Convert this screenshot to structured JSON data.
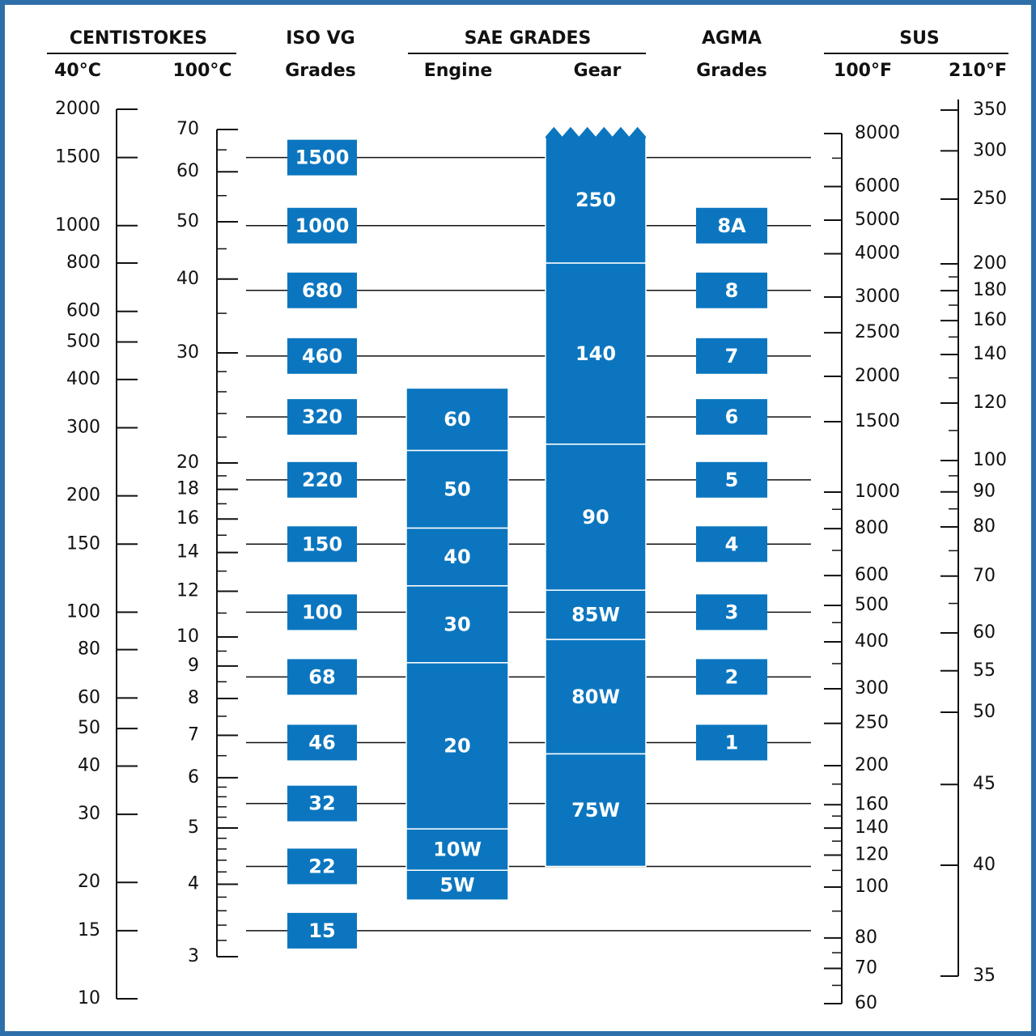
{
  "chart_data": {
    "type": "table",
    "headers": {
      "centistokes": "CENTISTOKES",
      "c40": "40°C",
      "c100": "100°C",
      "iso_line1": "ISO VG",
      "iso_line2": "Grades",
      "sae": "SAE GRADES",
      "engine": "Engine",
      "gear": "Gear",
      "agma_line1": "AGMA",
      "agma_line2": "Grades",
      "sus": "SUS",
      "f100": "100°F",
      "f210": "210°F"
    },
    "scales": {
      "cst40": {
        "labels": [
          "2000",
          "1500",
          "1000",
          "800",
          "600",
          "500",
          "400",
          "300",
          "200",
          "150",
          "100",
          "80",
          "60",
          "50",
          "40",
          "30",
          "20",
          "15",
          "10"
        ],
        "values": [
          2000,
          1500,
          1000,
          800,
          600,
          500,
          400,
          300,
          200,
          150,
          100,
          80,
          60,
          50,
          40,
          30,
          20,
          15,
          10
        ]
      },
      "cst100": {
        "labels": [
          "70",
          "60",
          "50",
          "40",
          "30",
          "20",
          "18",
          "16",
          "14",
          "12",
          "10",
          "9",
          "8",
          "7",
          "6",
          "5",
          "4",
          "3"
        ],
        "values": [
          70,
          60,
          50,
          40,
          30,
          20,
          18,
          16,
          14,
          12,
          10,
          9,
          8,
          7,
          6,
          5,
          4,
          3
        ]
      },
      "sus100": {
        "labels": [
          "8000",
          "6000",
          "5000",
          "4000",
          "3000",
          "2500",
          "2000",
          "1500",
          "1000",
          "800",
          "600",
          "500",
          "400",
          "300",
          "250",
          "200",
          "160",
          "140",
          "120",
          "100",
          "80",
          "70",
          "60"
        ],
        "values": [
          8000,
          6000,
          5000,
          4000,
          3000,
          2500,
          2000,
          1500,
          1000,
          800,
          600,
          500,
          400,
          300,
          250,
          200,
          160,
          140,
          120,
          100,
          80,
          70,
          60
        ]
      },
      "sus210": {
        "labels": [
          "350",
          "300",
          "250",
          "200",
          "180",
          "160",
          "140",
          "120",
          "100",
          "90",
          "80",
          "70",
          "60",
          "55",
          "50",
          "45",
          "40",
          "35"
        ],
        "values": [
          350,
          300,
          250,
          200,
          180,
          160,
          140,
          120,
          100,
          90,
          80,
          70,
          60,
          55,
          50,
          45,
          40,
          35
        ]
      }
    },
    "iso_grades": [
      {
        "label": "1500",
        "value": 1500
      },
      {
        "label": "1000",
        "value": 1000
      },
      {
        "label": "680",
        "value": 680
      },
      {
        "label": "460",
        "value": 460
      },
      {
        "label": "320",
        "value": 320
      },
      {
        "label": "220",
        "value": 220
      },
      {
        "label": "150",
        "value": 150
      },
      {
        "label": "100",
        "value": 100
      },
      {
        "label": "68",
        "value": 68
      },
      {
        "label": "46",
        "value": 46
      },
      {
        "label": "32",
        "value": 32
      },
      {
        "label": "22",
        "value": 22
      },
      {
        "label": "15",
        "value": 15
      }
    ],
    "agma_grades": [
      {
        "label": "8A",
        "value": 1000
      },
      {
        "label": "8",
        "value": 680
      },
      {
        "label": "7",
        "value": 460
      },
      {
        "label": "6",
        "value": 320
      },
      {
        "label": "5",
        "value": 220
      },
      {
        "label": "4",
        "value": 150
      },
      {
        "label": "3",
        "value": 100
      },
      {
        "label": "2",
        "value": 68
      },
      {
        "label": "1",
        "value": 46
      }
    ],
    "sae_engine": [
      {
        "label": "60",
        "from": 380,
        "to": 262
      },
      {
        "label": "50",
        "from": 262,
        "to": 165
      },
      {
        "label": "40",
        "from": 165,
        "to": 117
      },
      {
        "label": "30",
        "from": 117,
        "to": 74
      },
      {
        "label": "20",
        "from": 74,
        "to": 27.5
      },
      {
        "label": "10W",
        "from": 27.5,
        "to": 21.5
      },
      {
        "label": "5W",
        "from": 21.5,
        "to": 18
      }
    ],
    "sae_gear": [
      {
        "label": "250",
        "from": 1700,
        "to": 800
      },
      {
        "label": "140",
        "from": 800,
        "to": 272
      },
      {
        "label": "90",
        "from": 272,
        "to": 114
      },
      {
        "label": "85W",
        "from": 114,
        "to": 85
      },
      {
        "label": "80W",
        "from": 85,
        "to": 43
      },
      {
        "label": "75W",
        "from": 43,
        "to": 22
      }
    ],
    "colors": {
      "box": "#0b76bf",
      "frame": "#2d6fa8",
      "line": "#111111"
    }
  }
}
